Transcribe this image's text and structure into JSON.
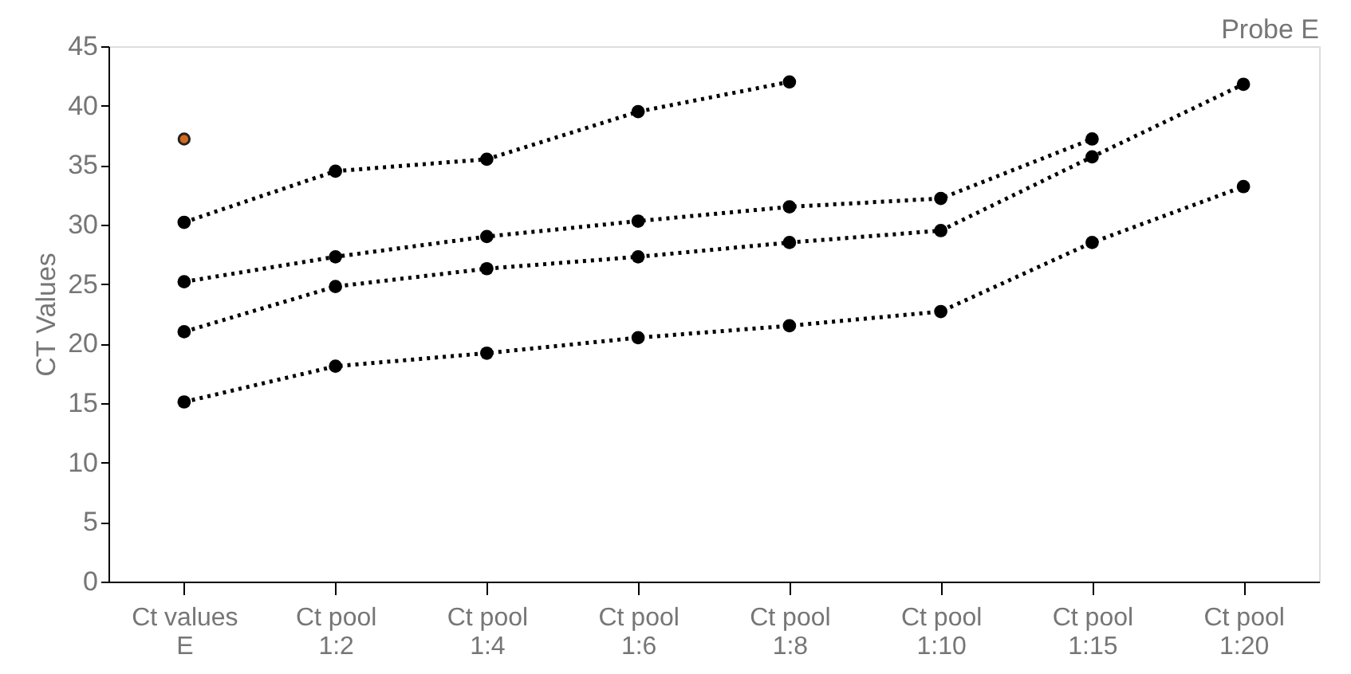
{
  "chart_data": {
    "type": "line",
    "title": "Probe E",
    "ylabel": "CT Values",
    "categories": [
      "Ct values E",
      "Ct pool 1:2",
      "Ct pool 1:4",
      "Ct pool 1:6",
      "Ct pool 1:8",
      "Ct pool 1:10",
      "Ct pool 1:15",
      "Ct pool 1:20"
    ],
    "series": [
      {
        "color": "#000000",
        "values": [
          30.2,
          34.5,
          35.5,
          39.5,
          42,
          null,
          null,
          null
        ]
      },
      {
        "color": "#000000",
        "values": [
          25.2,
          27.3,
          29,
          30.3,
          31.5,
          32.2,
          37.2,
          null
        ]
      },
      {
        "color": "#000000",
        "values": [
          21,
          24.8,
          26.3,
          27.3,
          28.5,
          29.5,
          35.7,
          41.8
        ]
      },
      {
        "color": "#000000",
        "values": [
          15.1,
          18.1,
          19.2,
          20.5,
          21.5,
          22.7,
          28.5,
          33.2
        ]
      },
      {
        "type": "scatter",
        "color": "#d2691e",
        "values": [
          37.2,
          null,
          null,
          null,
          null,
          null,
          null,
          null
        ]
      }
    ],
    "ylim": [
      0,
      45
    ],
    "yticks": [
      0,
      5,
      10,
      15,
      20,
      25,
      30,
      35,
      40,
      45
    ],
    "grid": false,
    "legend": false,
    "marker": "circle",
    "line_style": "dotted"
  }
}
